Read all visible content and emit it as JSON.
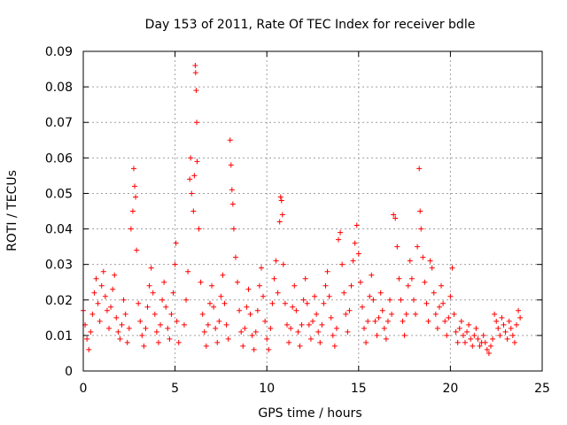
{
  "chart_data": {
    "type": "scatter",
    "title": "Day 153 of 2011, Rate Of TEC Index for receiver bdle",
    "xlabel": "GPS time / hours",
    "ylabel": "ROTI / TECUs",
    "xlim": [
      0,
      25
    ],
    "ylim": [
      0,
      0.09
    ],
    "xticks": [
      0,
      5,
      10,
      15,
      20,
      25
    ],
    "xtick_labels": [
      "0",
      "5",
      "10",
      "15",
      "20",
      "25"
    ],
    "yticks": [
      0,
      0.01,
      0.02,
      0.03,
      0.04,
      0.05,
      0.06,
      0.07,
      0.08,
      0.09
    ],
    "ytick_labels": [
      "0",
      "0.01",
      "0.02",
      "0.03",
      "0.04",
      "0.05",
      "0.06",
      "0.07",
      "0.08",
      "0.09"
    ],
    "grid": true,
    "marker": "+",
    "color": "#ff0000",
    "series": [
      {
        "name": "ROTI",
        "points": [
          [
            0.0,
            0.017
          ],
          [
            0.1,
            0.013
          ],
          [
            0.2,
            0.009
          ],
          [
            0.3,
            0.006
          ],
          [
            0.4,
            0.011
          ],
          [
            0.5,
            0.016
          ],
          [
            0.6,
            0.022
          ],
          [
            0.7,
            0.026
          ],
          [
            0.8,
            0.019
          ],
          [
            0.9,
            0.014
          ],
          [
            1.0,
            0.024
          ],
          [
            1.1,
            0.028
          ],
          [
            1.2,
            0.021
          ],
          [
            1.3,
            0.017
          ],
          [
            1.4,
            0.012
          ],
          [
            1.5,
            0.018
          ],
          [
            1.6,
            0.023
          ],
          [
            1.7,
            0.027
          ],
          [
            1.8,
            0.015
          ],
          [
            1.9,
            0.011
          ],
          [
            2.0,
            0.009
          ],
          [
            2.1,
            0.013
          ],
          [
            2.2,
            0.02
          ],
          [
            2.3,
            0.016
          ],
          [
            2.4,
            0.008
          ],
          [
            2.5,
            0.012
          ],
          [
            2.6,
            0.04
          ],
          [
            2.7,
            0.045
          ],
          [
            2.75,
            0.057
          ],
          [
            2.8,
            0.052
          ],
          [
            2.85,
            0.049
          ],
          [
            2.9,
            0.034
          ],
          [
            3.0,
            0.019
          ],
          [
            3.1,
            0.014
          ],
          [
            3.2,
            0.01
          ],
          [
            3.3,
            0.007
          ],
          [
            3.4,
            0.012
          ],
          [
            3.5,
            0.018
          ],
          [
            3.6,
            0.024
          ],
          [
            3.7,
            0.029
          ],
          [
            3.8,
            0.022
          ],
          [
            3.9,
            0.016
          ],
          [
            4.0,
            0.011
          ],
          [
            4.1,
            0.008
          ],
          [
            4.2,
            0.013
          ],
          [
            4.3,
            0.02
          ],
          [
            4.4,
            0.025
          ],
          [
            4.5,
            0.018
          ],
          [
            4.6,
            0.012
          ],
          [
            4.7,
            0.009
          ],
          [
            4.8,
            0.016
          ],
          [
            4.9,
            0.022
          ],
          [
            5.0,
            0.03
          ],
          [
            5.05,
            0.036
          ],
          [
            5.1,
            0.014
          ],
          [
            5.2,
            0.008
          ],
          [
            5.5,
            0.013
          ],
          [
            5.6,
            0.02
          ],
          [
            5.7,
            0.028
          ],
          [
            5.8,
            0.054
          ],
          [
            5.85,
            0.06
          ],
          [
            5.9,
            0.05
          ],
          [
            6.0,
            0.045
          ],
          [
            6.05,
            0.055
          ],
          [
            6.1,
            0.086
          ],
          [
            6.12,
            0.084
          ],
          [
            6.15,
            0.079
          ],
          [
            6.18,
            0.07
          ],
          [
            6.2,
            0.059
          ],
          [
            6.3,
            0.04
          ],
          [
            6.4,
            0.025
          ],
          [
            6.5,
            0.016
          ],
          [
            6.6,
            0.011
          ],
          [
            6.7,
            0.007
          ],
          [
            6.8,
            0.013
          ],
          [
            6.9,
            0.019
          ],
          [
            7.0,
            0.024
          ],
          [
            7.1,
            0.018
          ],
          [
            7.2,
            0.012
          ],
          [
            7.3,
            0.008
          ],
          [
            7.4,
            0.014
          ],
          [
            7.5,
            0.021
          ],
          [
            7.6,
            0.027
          ],
          [
            7.7,
            0.019
          ],
          [
            7.8,
            0.013
          ],
          [
            7.9,
            0.009
          ],
          [
            8.0,
            0.065
          ],
          [
            8.05,
            0.058
          ],
          [
            8.1,
            0.051
          ],
          [
            8.15,
            0.047
          ],
          [
            8.2,
            0.04
          ],
          [
            8.3,
            0.032
          ],
          [
            8.4,
            0.025
          ],
          [
            8.5,
            0.017
          ],
          [
            8.6,
            0.011
          ],
          [
            8.7,
            0.007
          ],
          [
            8.8,
            0.012
          ],
          [
            8.9,
            0.018
          ],
          [
            9.0,
            0.023
          ],
          [
            9.1,
            0.016
          ],
          [
            9.2,
            0.01
          ],
          [
            9.3,
            0.006
          ],
          [
            9.4,
            0.011
          ],
          [
            9.5,
            0.017
          ],
          [
            9.6,
            0.024
          ],
          [
            9.7,
            0.029
          ],
          [
            9.8,
            0.021
          ],
          [
            9.9,
            0.014
          ],
          [
            10.0,
            0.009
          ],
          [
            10.1,
            0.006
          ],
          [
            10.2,
            0.012
          ],
          [
            10.3,
            0.019
          ],
          [
            10.4,
            0.026
          ],
          [
            10.5,
            0.031
          ],
          [
            10.6,
            0.022
          ],
          [
            10.7,
            0.042
          ],
          [
            10.75,
            0.049
          ],
          [
            10.8,
            0.048
          ],
          [
            10.85,
            0.044
          ],
          [
            10.9,
            0.03
          ],
          [
            11.0,
            0.019
          ],
          [
            11.1,
            0.013
          ],
          [
            11.2,
            0.008
          ],
          [
            11.3,
            0.012
          ],
          [
            11.4,
            0.018
          ],
          [
            11.5,
            0.024
          ],
          [
            11.6,
            0.017
          ],
          [
            11.7,
            0.011
          ],
          [
            11.8,
            0.007
          ],
          [
            11.9,
            0.013
          ],
          [
            12.0,
            0.02
          ],
          [
            12.1,
            0.026
          ],
          [
            12.2,
            0.019
          ],
          [
            12.3,
            0.013
          ],
          [
            12.4,
            0.009
          ],
          [
            12.5,
            0.014
          ],
          [
            12.6,
            0.021
          ],
          [
            12.7,
            0.016
          ],
          [
            12.8,
            0.011
          ],
          [
            12.9,
            0.008
          ],
          [
            13.0,
            0.013
          ],
          [
            13.1,
            0.019
          ],
          [
            13.2,
            0.024
          ],
          [
            13.3,
            0.028
          ],
          [
            13.4,
            0.021
          ],
          [
            13.5,
            0.015
          ],
          [
            13.6,
            0.01
          ],
          [
            13.7,
            0.007
          ],
          [
            13.8,
            0.012
          ],
          [
            13.9,
            0.037
          ],
          [
            14.0,
            0.039
          ],
          [
            14.1,
            0.03
          ],
          [
            14.2,
            0.022
          ],
          [
            14.3,
            0.016
          ],
          [
            14.4,
            0.011
          ],
          [
            14.5,
            0.017
          ],
          [
            14.6,
            0.024
          ],
          [
            14.7,
            0.031
          ],
          [
            14.8,
            0.036
          ],
          [
            14.9,
            0.041
          ],
          [
            15.0,
            0.033
          ],
          [
            15.1,
            0.025
          ],
          [
            15.2,
            0.018
          ],
          [
            15.3,
            0.012
          ],
          [
            15.4,
            0.008
          ],
          [
            15.5,
            0.014
          ],
          [
            15.6,
            0.021
          ],
          [
            15.7,
            0.027
          ],
          [
            15.8,
            0.02
          ],
          [
            15.9,
            0.014
          ],
          [
            16.0,
            0.01
          ],
          [
            16.1,
            0.015
          ],
          [
            16.2,
            0.022
          ],
          [
            16.3,
            0.017
          ],
          [
            16.4,
            0.012
          ],
          [
            16.5,
            0.009
          ],
          [
            16.6,
            0.014
          ],
          [
            16.7,
            0.02
          ],
          [
            16.8,
            0.016
          ],
          [
            16.9,
            0.044
          ],
          [
            17.0,
            0.043
          ],
          [
            17.1,
            0.035
          ],
          [
            17.2,
            0.026
          ],
          [
            17.3,
            0.02
          ],
          [
            17.4,
            0.014
          ],
          [
            17.5,
            0.01
          ],
          [
            17.6,
            0.016
          ],
          [
            17.7,
            0.024
          ],
          [
            17.8,
            0.031
          ],
          [
            17.9,
            0.026
          ],
          [
            18.0,
            0.02
          ],
          [
            18.1,
            0.016
          ],
          [
            18.2,
            0.035
          ],
          [
            18.3,
            0.057
          ],
          [
            18.35,
            0.045
          ],
          [
            18.4,
            0.04
          ],
          [
            18.5,
            0.032
          ],
          [
            18.6,
            0.025
          ],
          [
            18.7,
            0.019
          ],
          [
            18.8,
            0.014
          ],
          [
            18.9,
            0.031
          ],
          [
            19.0,
            0.029
          ],
          [
            19.1,
            0.022
          ],
          [
            19.2,
            0.016
          ],
          [
            19.3,
            0.012
          ],
          [
            19.4,
            0.018
          ],
          [
            19.5,
            0.024
          ],
          [
            19.6,
            0.019
          ],
          [
            19.7,
            0.014
          ],
          [
            19.8,
            0.01
          ],
          [
            19.9,
            0.015
          ],
          [
            20.0,
            0.021
          ],
          [
            20.1,
            0.029
          ],
          [
            20.2,
            0.016
          ],
          [
            20.3,
            0.011
          ],
          [
            20.4,
            0.008
          ],
          [
            20.5,
            0.012
          ],
          [
            20.6,
            0.014
          ],
          [
            20.7,
            0.01
          ],
          [
            20.8,
            0.008
          ],
          [
            20.9,
            0.011
          ],
          [
            21.0,
            0.013
          ],
          [
            21.1,
            0.009
          ],
          [
            21.2,
            0.007
          ],
          [
            21.3,
            0.01
          ],
          [
            21.4,
            0.012
          ],
          [
            21.5,
            0.009
          ],
          [
            21.6,
            0.007
          ],
          [
            21.7,
            0.008
          ],
          [
            21.8,
            0.01
          ],
          [
            21.9,
            0.008
          ],
          [
            22.0,
            0.006
          ],
          [
            22.1,
            0.005
          ],
          [
            22.2,
            0.007
          ],
          [
            22.3,
            0.009
          ],
          [
            22.4,
            0.016
          ],
          [
            22.5,
            0.014
          ],
          [
            22.6,
            0.012
          ],
          [
            22.7,
            0.01
          ],
          [
            22.8,
            0.015
          ],
          [
            22.9,
            0.013
          ],
          [
            23.0,
            0.011
          ],
          [
            23.1,
            0.009
          ],
          [
            23.2,
            0.014
          ],
          [
            23.3,
            0.012
          ],
          [
            23.4,
            0.01
          ],
          [
            23.5,
            0.008
          ],
          [
            23.6,
            0.013
          ],
          [
            23.7,
            0.017
          ],
          [
            23.8,
            0.015
          ]
        ]
      }
    ]
  }
}
